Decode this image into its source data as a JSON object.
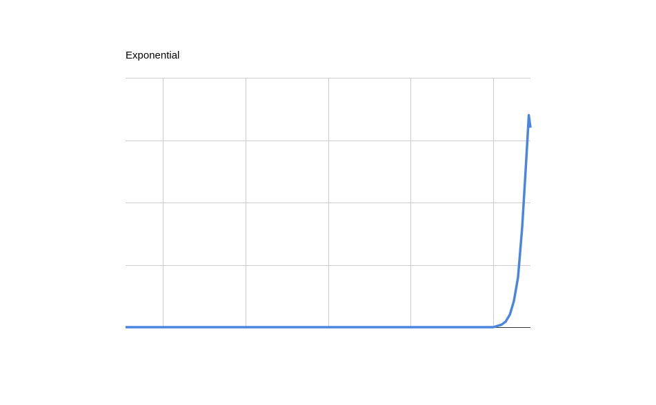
{
  "chart_data": {
    "type": "line",
    "title": "Exponential",
    "xlabel": "",
    "ylabel": "",
    "xlim": [
      -4.45,
      0.45
    ],
    "ylim": [
      0,
      4
    ],
    "x_gridlines": [
      -4,
      -3,
      -2,
      -1,
      0
    ],
    "y_gridlines": [
      0,
      1,
      2,
      3,
      4
    ],
    "grid": true,
    "legend": "none",
    "tick_labels_visible": false,
    "series": [
      {
        "color": "#4a86e0",
        "x": [
          -4.45,
          -4.0,
          -3.0,
          -2.0,
          -1.0,
          -0.5,
          -0.2,
          0.0,
          0.05,
          0.1,
          0.15,
          0.2,
          0.25,
          0.3,
          0.35,
          0.4,
          0.43,
          0.45
        ],
        "y": [
          0.0,
          0.0,
          0.0,
          0.0,
          0.0,
          0.0,
          0.0,
          0.0,
          0.02,
          0.04,
          0.09,
          0.2,
          0.42,
          0.8,
          1.6,
          2.7,
          3.4,
          3.2
        ]
      }
    ]
  }
}
